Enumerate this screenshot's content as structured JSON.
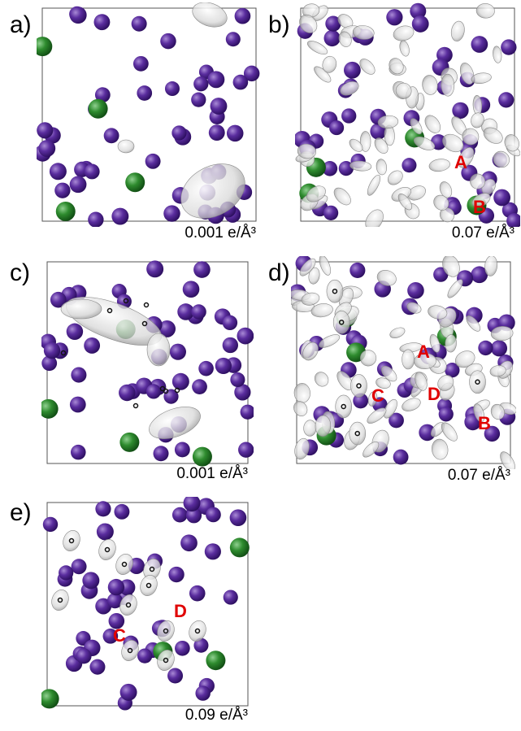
{
  "panels": [
    {
      "label": "a)",
      "isovalue": "0.001 e/Å³"
    },
    {
      "label": "b)",
      "isovalue": "0.07 e/Å³",
      "annotations": [
        "A",
        "B"
      ]
    },
    {
      "label": "c)",
      "isovalue": "0.001 e/Å³"
    },
    {
      "label": "d)",
      "isovalue": "0.07 e/Å³",
      "annotations": [
        "A",
        "C",
        "D",
        "B"
      ]
    },
    {
      "label": "e)",
      "isovalue": "0.09 e/Å³",
      "annotations": [
        "D",
        "C"
      ]
    }
  ]
}
